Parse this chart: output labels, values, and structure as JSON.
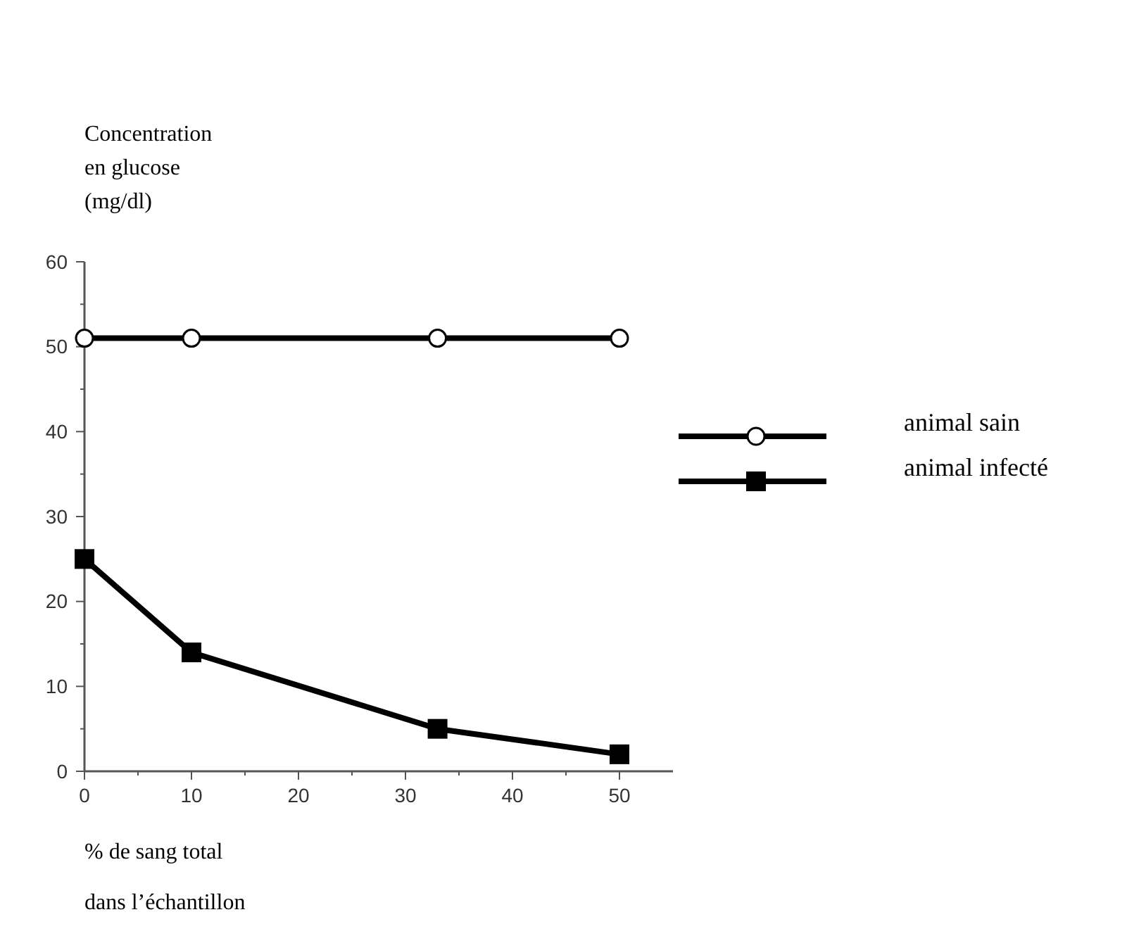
{
  "chart_data": {
    "type": "line",
    "ylabel": "Concentration\nen glucose\n(mg/dl)",
    "xlabel": "% de sang total\ndans l’échantillon",
    "xlim": [
      0,
      55
    ],
    "ylim": [
      0,
      60
    ],
    "xticks": [
      0,
      {
        "value": 5,
        "label": null
      },
      10,
      {
        "value": 15,
        "label": null
      },
      20,
      {
        "value": 25,
        "label": null
      },
      30,
      {
        "value": 35,
        "label": null
      },
      40,
      {
        "value": 45,
        "label": null
      },
      50
    ],
    "yticks": [
      0,
      {
        "value": 5,
        "label": null
      },
      10,
      {
        "value": 15,
        "label": null
      },
      20,
      {
        "value": 25,
        "label": null
      },
      30,
      {
        "value": 35,
        "label": null
      },
      40,
      {
        "value": 45,
        "label": null
      },
      50,
      {
        "value": 55,
        "label": null
      },
      60
    ],
    "grid": false,
    "legend": "right",
    "line_style": "solid",
    "series": [
      {
        "name": "animal sain",
        "color": "#000000",
        "marker": "circle",
        "x": [
          0,
          10,
          33,
          50
        ],
        "values": [
          51,
          51,
          51,
          51
        ]
      },
      {
        "name": "animal infecté",
        "color": "#000000",
        "marker": "square",
        "x": [
          0,
          10,
          33,
          50
        ],
        "values": [
          25,
          14,
          5,
          2
        ]
      }
    ]
  }
}
